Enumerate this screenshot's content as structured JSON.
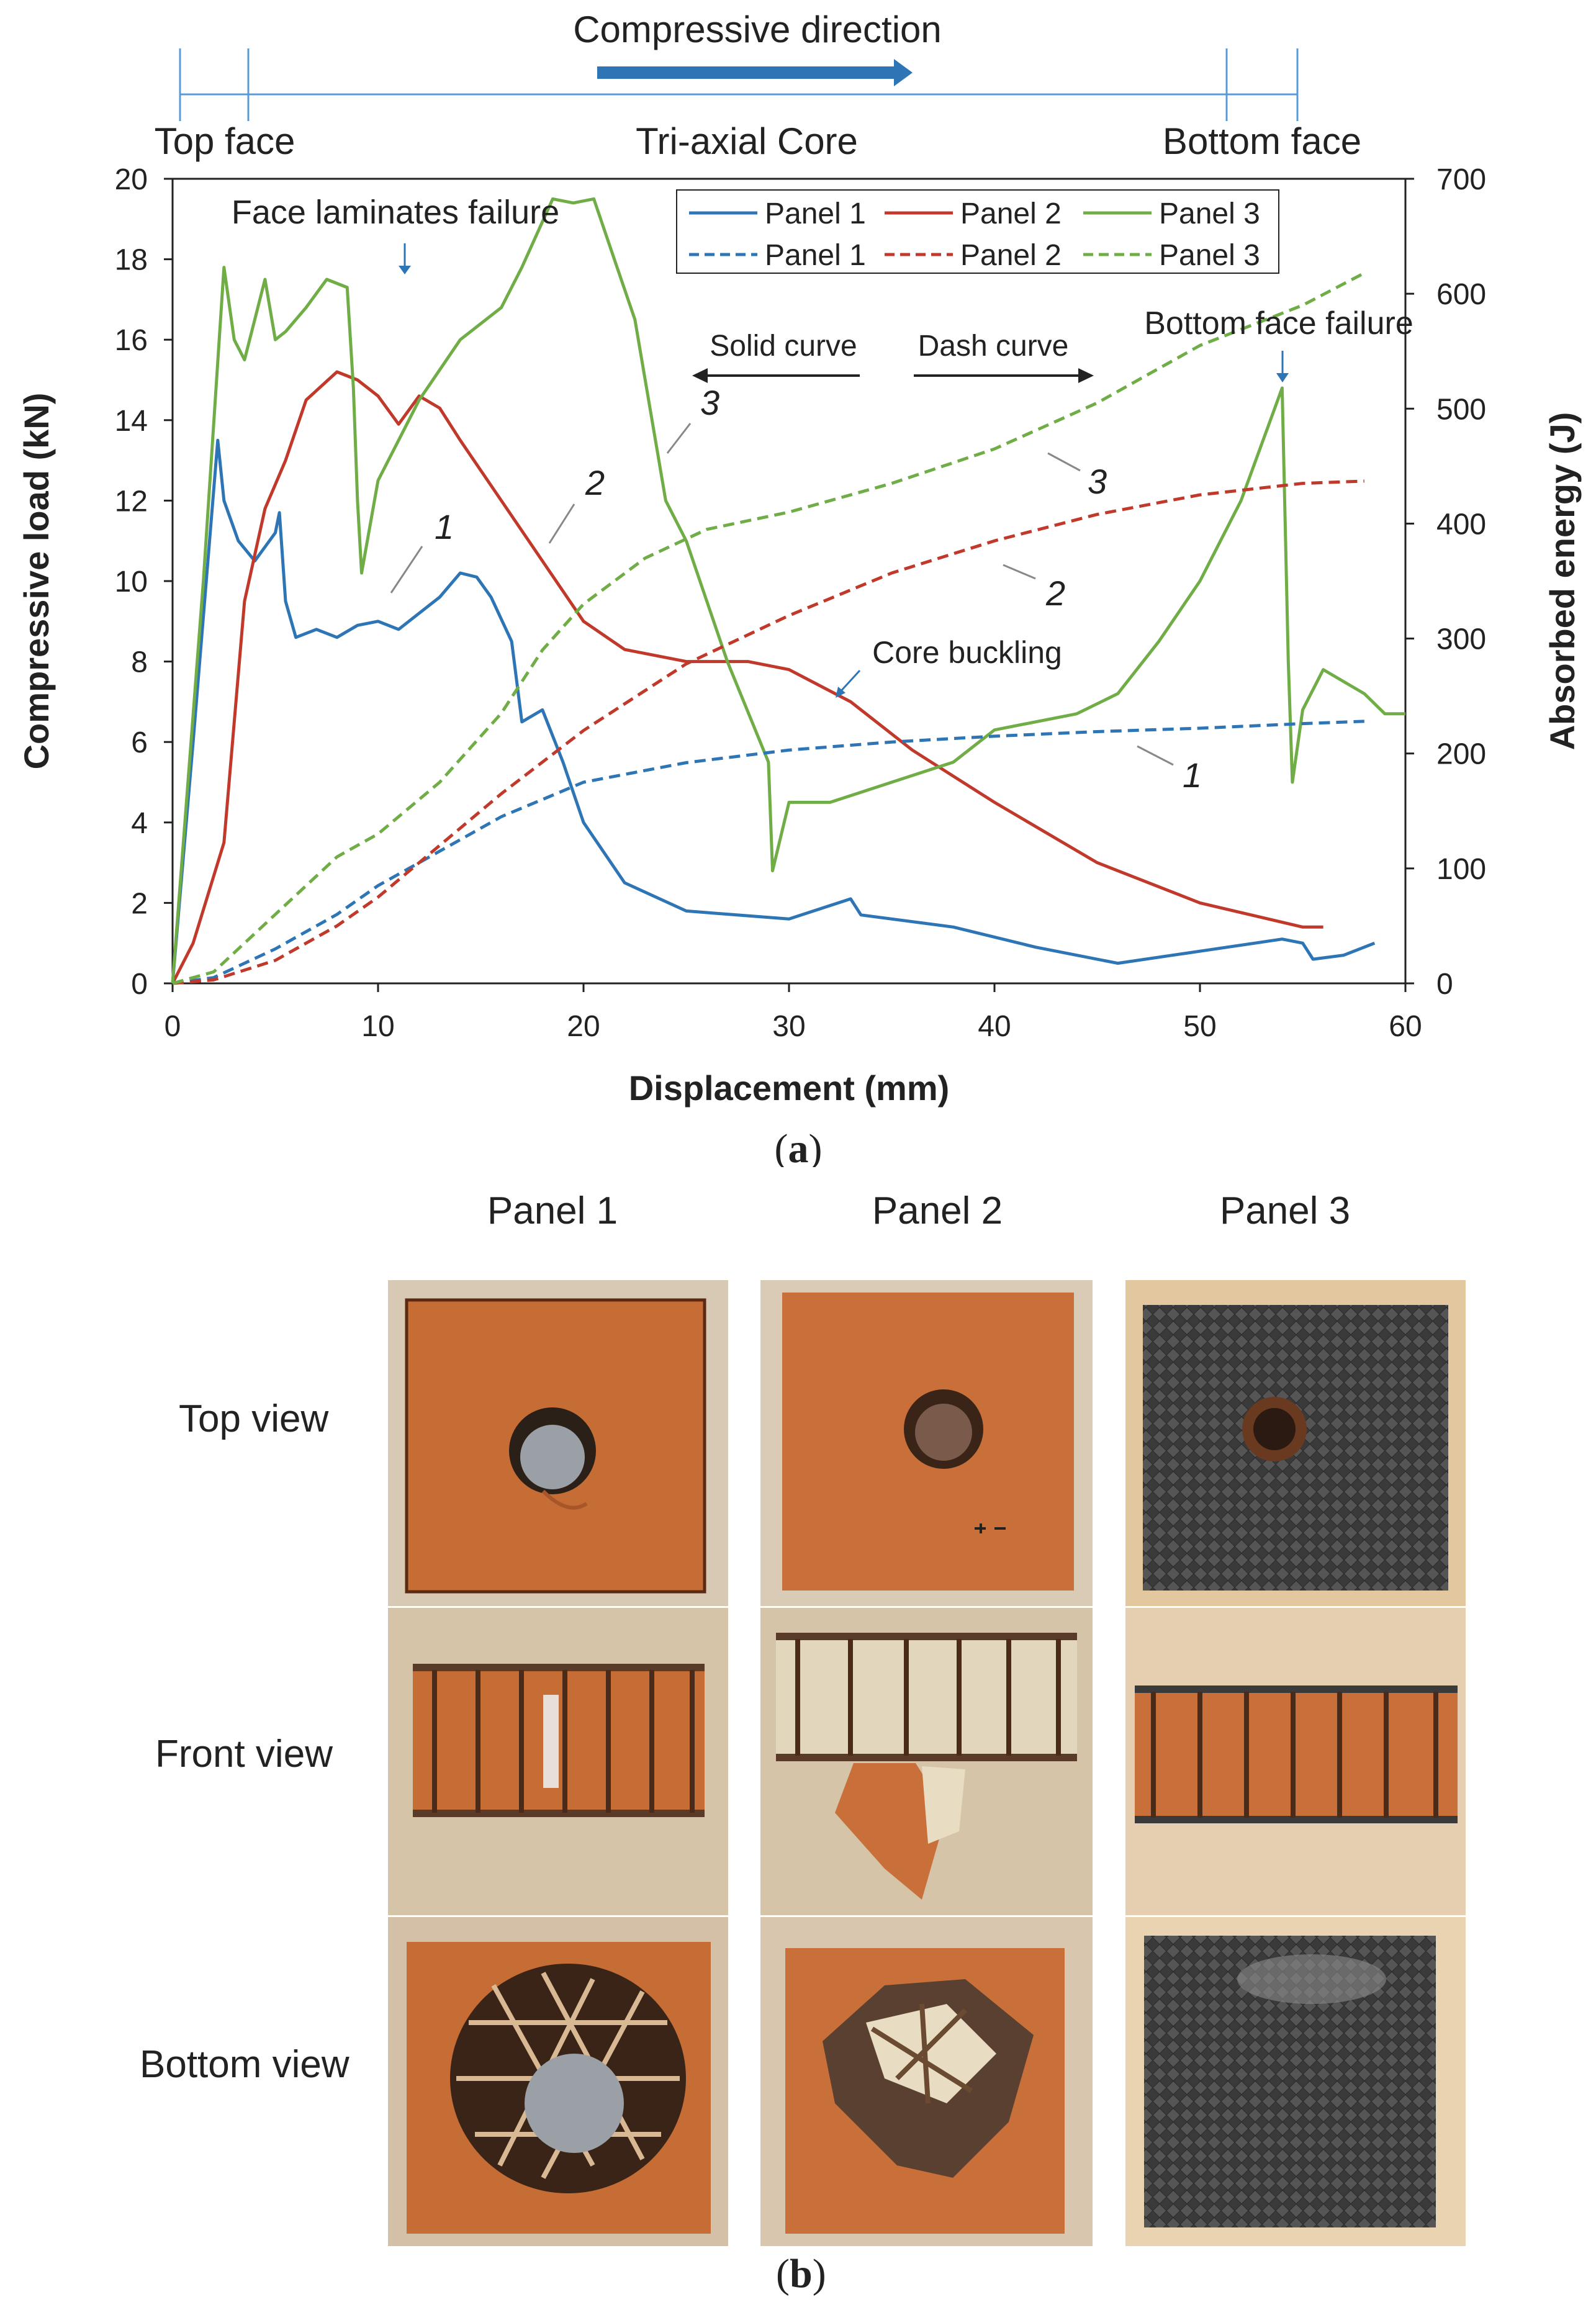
{
  "part_a_label": "a",
  "part_b_label": "b",
  "chart_data": {
    "type": "line",
    "title": "",
    "xlabel": "Displacement (mm)",
    "ylabel_left": "Compressive load (kN)",
    "ylabel_right": "Absorbed  energy (J)",
    "xlim": [
      0,
      60
    ],
    "ylim_left": [
      0,
      20
    ],
    "ylim_right": [
      0,
      700
    ],
    "x_ticks": [
      0,
      10,
      20,
      30,
      40,
      50,
      60
    ],
    "y_ticks_left": [
      0,
      2,
      4,
      6,
      8,
      10,
      12,
      14,
      16,
      18,
      20
    ],
    "y_ticks_right": [
      0,
      100,
      200,
      300,
      400,
      500,
      600,
      700
    ],
    "grid": false,
    "legend_position": "top-right",
    "legend": [
      {
        "name": "Panel 1",
        "style": "solid",
        "color": "#2e75b6"
      },
      {
        "name": "Panel 2",
        "style": "solid",
        "color": "#c0392b"
      },
      {
        "name": "Panel 3",
        "style": "solid",
        "color": "#70ad47"
      },
      {
        "name": "Panel 1",
        "style": "dashed",
        "color": "#2e75b6"
      },
      {
        "name": "Panel 2",
        "style": "dashed",
        "color": "#c0392b"
      },
      {
        "name": "Panel 3",
        "style": "dashed",
        "color": "#70ad47"
      }
    ],
    "series": [
      {
        "name": "Panel 1",
        "kind": "load",
        "axis": "left",
        "color": "#2e75b6",
        "x": [
          0,
          1.0,
          2.2,
          2.5,
          3.2,
          4.0,
          5.0,
          5.2,
          5.5,
          6.0,
          7.0,
          8.0,
          9.0,
          10.0,
          11.0,
          12.0,
          13.0,
          14.0,
          14.8,
          15.5,
          16.5,
          17.0,
          18.0,
          19.0,
          20.0,
          22.0,
          25.0,
          30.0,
          33.0,
          33.5,
          38.0,
          42.0,
          46.0,
          50.0,
          54.0,
          55.0,
          55.5,
          57.0,
          58.5
        ],
        "y": [
          0,
          6.0,
          13.5,
          12.0,
          11.0,
          10.5,
          11.2,
          11.7,
          9.5,
          8.6,
          8.8,
          8.6,
          8.9,
          9.0,
          8.8,
          9.2,
          9.6,
          10.2,
          10.1,
          9.6,
          8.5,
          6.5,
          6.8,
          5.5,
          4.0,
          2.5,
          1.8,
          1.6,
          2.1,
          1.7,
          1.4,
          0.9,
          0.5,
          0.8,
          1.1,
          1.0,
          0.6,
          0.7,
          1.0
        ]
      },
      {
        "name": "Panel 2",
        "kind": "load",
        "axis": "left",
        "color": "#c0392b",
        "x": [
          0,
          1.0,
          2.5,
          3.5,
          4.5,
          5.5,
          6.5,
          8.0,
          9.0,
          10.0,
          11.0,
          12.0,
          13.0,
          14.0,
          16.0,
          18.0,
          20.0,
          22.0,
          25.0,
          28.0,
          30.0,
          33.0,
          36.0,
          40.0,
          45.0,
          50.0,
          55.0,
          56.0
        ],
        "y": [
          0,
          1.0,
          3.5,
          9.5,
          11.8,
          13.0,
          14.5,
          15.2,
          15.0,
          14.6,
          13.9,
          14.6,
          14.3,
          13.5,
          12.0,
          10.5,
          9.0,
          8.3,
          8.0,
          8.0,
          7.8,
          7.0,
          5.8,
          4.5,
          3.0,
          2.0,
          1.4,
          1.4
        ],
        "note": ""
      },
      {
        "name": "Panel 3",
        "kind": "load",
        "axis": "left",
        "color": "#70ad47",
        "x": [
          0,
          1.5,
          2.5,
          3.0,
          3.5,
          4.5,
          5.0,
          5.5,
          6.5,
          7.5,
          8.5,
          8.8,
          9.0,
          9.2,
          10.0,
          12.0,
          14.0,
          16.0,
          17.0,
          18.5,
          19.5,
          20.5,
          21.5,
          22.5,
          24.0,
          25.0,
          27.0,
          29.0,
          29.2,
          30.0,
          32.0,
          35.0,
          38.0,
          40.0,
          42.0,
          44.0,
          46.0,
          48.0,
          50.0,
          52.0,
          54.0,
          54.3,
          54.5,
          55.0,
          56.0,
          57.0,
          58.0,
          59.0,
          60.0
        ],
        "y": [
          0,
          10.0,
          17.8,
          16.0,
          15.5,
          17.5,
          16.0,
          16.2,
          16.8,
          17.5,
          17.3,
          14.8,
          12.0,
          10.2,
          12.5,
          14.5,
          16.0,
          16.8,
          17.8,
          19.5,
          19.4,
          19.5,
          18.0,
          16.5,
          12.0,
          11.0,
          8.0,
          5.5,
          2.8,
          4.5,
          4.5,
          5.0,
          5.5,
          6.3,
          6.5,
          6.7,
          7.2,
          8.5,
          10.0,
          12.0,
          14.8,
          8.0,
          5.0,
          6.8,
          7.8,
          7.5,
          7.2,
          6.7,
          6.7
        ]
      },
      {
        "name": "Panel 1",
        "kind": "energy",
        "axis": "right",
        "color": "#2e75b6",
        "x": [
          0,
          2,
          5,
          8,
          10,
          13,
          16,
          18,
          20,
          25,
          30,
          35,
          40,
          45,
          50,
          55,
          58
        ],
        "y": [
          0,
          5,
          30,
          60,
          85,
          115,
          145,
          160,
          175,
          192,
          203,
          210,
          215,
          219,
          222,
          226,
          228
        ]
      },
      {
        "name": "Panel 2",
        "kind": "energy",
        "axis": "right",
        "color": "#c0392b",
        "x": [
          0,
          2,
          5,
          8,
          10,
          13,
          16,
          20,
          25,
          30,
          35,
          40,
          45,
          50,
          55,
          58
        ],
        "y": [
          0,
          3,
          20,
          50,
          75,
          120,
          165,
          220,
          278,
          320,
          357,
          385,
          408,
          425,
          435,
          437
        ]
      },
      {
        "name": "Panel 3",
        "kind": "energy",
        "axis": "right",
        "color": "#70ad47",
        "x": [
          0,
          2,
          5,
          8,
          10,
          13,
          16,
          18,
          20,
          23,
          26,
          30,
          35,
          40,
          45,
          50,
          55,
          58
        ],
        "y": [
          0,
          10,
          60,
          110,
          130,
          175,
          235,
          290,
          330,
          370,
          395,
          410,
          435,
          465,
          505,
          555,
          590,
          618
        ]
      }
    ],
    "annotations": {
      "compressive_direction": "Compressive direction",
      "top_face": "Top face",
      "core": "Tri-axial Core",
      "bottom_face": "Bottom face",
      "face_laminates_failure": "Face laminates failure",
      "bottom_face_failure": "Bottom face failure",
      "solid_curve": "Solid curve",
      "dash_curve": "Dash curve",
      "core_buckling": "Core buckling",
      "curve_numbers": [
        "1",
        "2",
        "3",
        "1",
        "2",
        "3"
      ]
    }
  },
  "photos": {
    "column_titles": [
      "Panel 1",
      "Panel 2",
      "Panel 3"
    ],
    "row_labels": [
      "Top view",
      "Front view",
      "Bottom view"
    ],
    "colors": {
      "orange": "#c9703a",
      "orange_dark": "#a9552a",
      "carbon": "#3a3a3a",
      "carbon_light": "#5a5a5a",
      "wood": "#d9b993",
      "foam": "#e8dcc2"
    }
  }
}
